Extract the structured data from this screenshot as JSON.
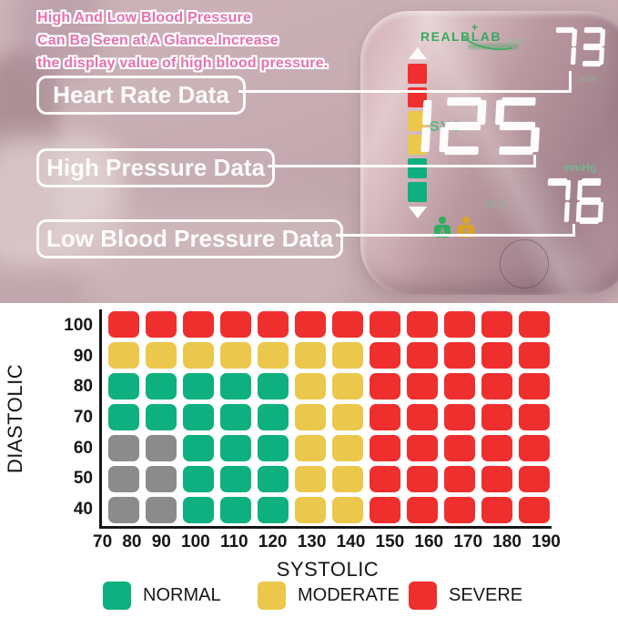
{
  "colors": {
    "green": "#0db07e",
    "yellow": "#ebc84b",
    "red": "#ef2e2e",
    "gray": "#8b8b8b",
    "pink_heading": "#e672ae",
    "brand_green": "#36a95d",
    "icon_a_green": "#2fae5f",
    "icon_b_yellow": "#dca41f"
  },
  "header": {
    "line1": "High And Low Blood Pressure",
    "line2": "Can Be Seen at A Glance.Increase",
    "line3": "the display value of high blood pressure."
  },
  "callouts": {
    "heart_rate": "Heart Rate Data",
    "high_pressure": "High Pressure Data",
    "low_pressure": "Low Blood Pressure Data"
  },
  "device": {
    "brand": "REALBLAB",
    "display": {
      "pulse": "73",
      "sys": "125",
      "dia": "76"
    },
    "labels": {
      "sys": "SYS",
      "dia": "DIA",
      "mmhg": "mmHg",
      "min_top": "min",
      "min_sub": "min"
    },
    "indicator_segments": [
      "red",
      "red",
      "yellow",
      "yellow",
      "green",
      "green"
    ],
    "users": [
      {
        "label": "A",
        "color": "icon_a_green"
      },
      {
        "label": "B",
        "color": "icon_b_yellow"
      }
    ]
  },
  "chart_data": {
    "type": "heatmap",
    "xlabel": "SYSTOLIC",
    "ylabel": "DIASTOLIC",
    "x_ticks": [
      "70",
      "80",
      "90",
      "100",
      "110",
      "120",
      "130",
      "140",
      "150",
      "160",
      "170",
      "180",
      "190"
    ],
    "y_ticks": [
      "100",
      "90",
      "80",
      "70",
      "60",
      "50",
      "40"
    ],
    "grid": true,
    "legend_position": "bottom",
    "rows": [
      {
        "diastolic": "100",
        "cells": [
          "red",
          "red",
          "red",
          "red",
          "red",
          "red",
          "red",
          "red",
          "red",
          "red",
          "red",
          "red"
        ]
      },
      {
        "diastolic": "90",
        "cells": [
          "yellow",
          "yellow",
          "yellow",
          "yellow",
          "yellow",
          "yellow",
          "yellow",
          "red",
          "red",
          "red",
          "red",
          "red"
        ]
      },
      {
        "diastolic": "80",
        "cells": [
          "green",
          "green",
          "green",
          "green",
          "green",
          "yellow",
          "yellow",
          "red",
          "red",
          "red",
          "red",
          "red"
        ]
      },
      {
        "diastolic": "70",
        "cells": [
          "green",
          "green",
          "green",
          "green",
          "green",
          "yellow",
          "yellow",
          "red",
          "red",
          "red",
          "red",
          "red"
        ]
      },
      {
        "diastolic": "60",
        "cells": [
          "gray",
          "gray",
          "green",
          "green",
          "green",
          "yellow",
          "yellow",
          "red",
          "red",
          "red",
          "red",
          "red"
        ]
      },
      {
        "diastolic": "50",
        "cells": [
          "gray",
          "gray",
          "green",
          "green",
          "green",
          "yellow",
          "yellow",
          "red",
          "red",
          "red",
          "red",
          "red"
        ]
      },
      {
        "diastolic": "40",
        "cells": [
          "gray",
          "gray",
          "green",
          "green",
          "green",
          "yellow",
          "yellow",
          "red",
          "red",
          "red",
          "red",
          "red"
        ]
      }
    ],
    "legend": [
      {
        "label": "NORMAL",
        "color": "green"
      },
      {
        "label": "MODERATE",
        "color": "yellow"
      },
      {
        "label": "SEVERE",
        "color": "red"
      }
    ]
  }
}
